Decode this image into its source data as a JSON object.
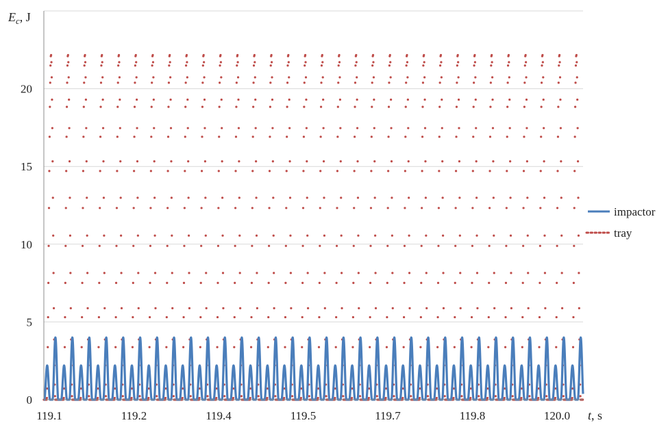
{
  "chart_data": {
    "type": "line",
    "ylabel": {
      "main": "E",
      "sub": "c",
      "unit": ", J"
    },
    "xlabel": {
      "main": "t",
      "unit": ", s"
    },
    "ylim": [
      0,
      25
    ],
    "y_ticks": [
      0,
      5,
      10,
      15,
      20
    ],
    "xlim": [
      119.1,
      120.08
    ],
    "x_ticks": [
      "119.1",
      "119.2",
      "119.4",
      "119.5",
      "119.7",
      "119.8",
      "120.0"
    ],
    "grid": "horizontal",
    "legend_position": "right",
    "series": [
      {
        "name": "impactor",
        "style": "solid",
        "color": "#4a7ebb",
        "period_s": 0.0308,
        "peaks": [
          {
            "offset_s": 0.006,
            "value": 2.2
          },
          {
            "offset_s": 0.021,
            "value": 4.0
          }
        ]
      },
      {
        "name": "tray",
        "style": "dotted",
        "color": "#be4b48",
        "period_s": 0.0308,
        "peaks": [
          {
            "offset_s": 0.013,
            "value": 22.2
          }
        ]
      }
    ]
  }
}
